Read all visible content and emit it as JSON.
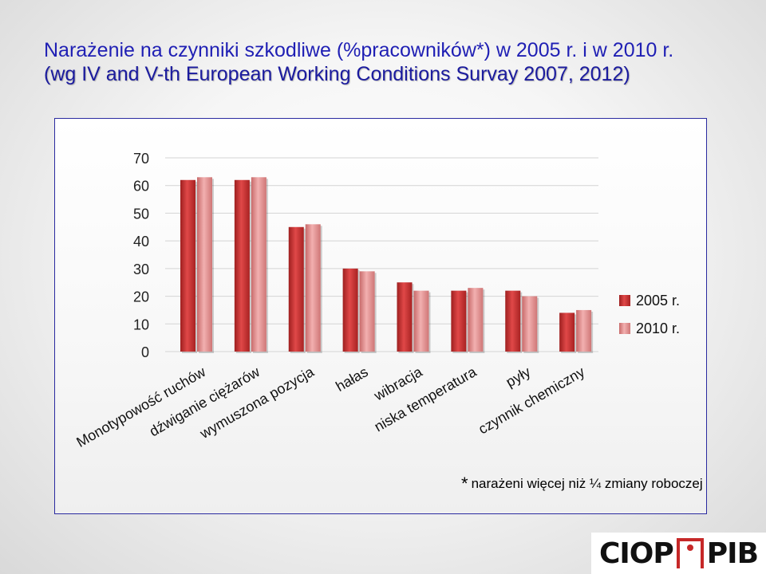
{
  "header": {
    "title_line1": "Narażenie na czynniki szkodliwe (%pracowników*) w 2005 r. i w 2010 r.",
    "title_line2": "(wg IV and V-th European Working Conditions Survay 2007, 2012)"
  },
  "footnote": {
    "star": "*",
    "text": "narażeni więcej niż ¼ zmiany roboczej"
  },
  "logo": {
    "left_text": "CIOP",
    "right_text": "PIB",
    "mark_color": "#c62828"
  },
  "chart_data": {
    "type": "bar",
    "categories": [
      "Monotypowość ruchów",
      "dźwiganie ciężarów",
      "wymuszona pozycja",
      "hałas",
      "wibracja",
      "niska temperatura",
      "pyły",
      "czynnik chemiczny"
    ],
    "series": [
      {
        "name": "2005 r.",
        "values": [
          62,
          62,
          45,
          30,
          25,
          22,
          22,
          14
        ],
        "color": "#c62d2d"
      },
      {
        "name": "2010 r.",
        "values": [
          63,
          63,
          46,
          29,
          22,
          23,
          20,
          15
        ],
        "color": "#e08a8a"
      }
    ],
    "ylim": [
      0,
      70
    ],
    "yticks": [
      0,
      10,
      20,
      30,
      40,
      50,
      60,
      70
    ],
    "grid": true,
    "legend": "right"
  }
}
